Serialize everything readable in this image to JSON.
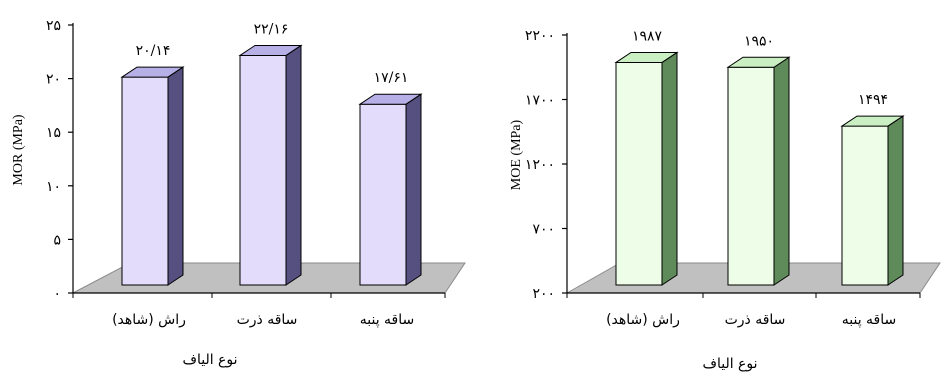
{
  "chart_data": [
    {
      "type": "bar",
      "ylabel": "MOR (MPa)",
      "xlabel": "نوع الیاف",
      "categories": [
        "راش (شاهد)",
        "ساقه ذرت",
        "ساقه پنبه"
      ],
      "values": [
        20.14,
        22.16,
        17.61
      ],
      "data_labels": [
        "۲۰/۱۴",
        "۲۲/۱۶",
        "۱۷/۶۱"
      ],
      "ylim": [
        0,
        25
      ],
      "yticks": [
        "۰",
        "۵",
        "۱۰",
        "۱۵",
        "۲۰",
        "۲۵"
      ],
      "colors": {
        "front": "#e3dcfb",
        "side": "#55507f",
        "top": "#b7b0e6",
        "floor": "#c0c0c0"
      }
    },
    {
      "type": "bar",
      "ylabel": "MOE (MPa)",
      "xlabel": "نوع الیاف",
      "categories": [
        "راش (شاهد)",
        "ساقه ذرت",
        "ساقه پنبه"
      ],
      "values": [
        1987,
        1950,
        1494
      ],
      "data_labels": [
        "۱۹۸۷",
        "۱۹۵۰",
        "۱۴۹۴"
      ],
      "ylim": [
        200,
        2200
      ],
      "yticks": [
        "۲۰۰",
        "۷۰۰",
        "۱۲۰۰",
        "۱۷۰۰",
        "۲۲۰۰"
      ],
      "colors": {
        "front": "#eefde8",
        "side": "#5f8a5a",
        "top": "#c9efc2",
        "floor": "#c0c0c0"
      }
    }
  ]
}
